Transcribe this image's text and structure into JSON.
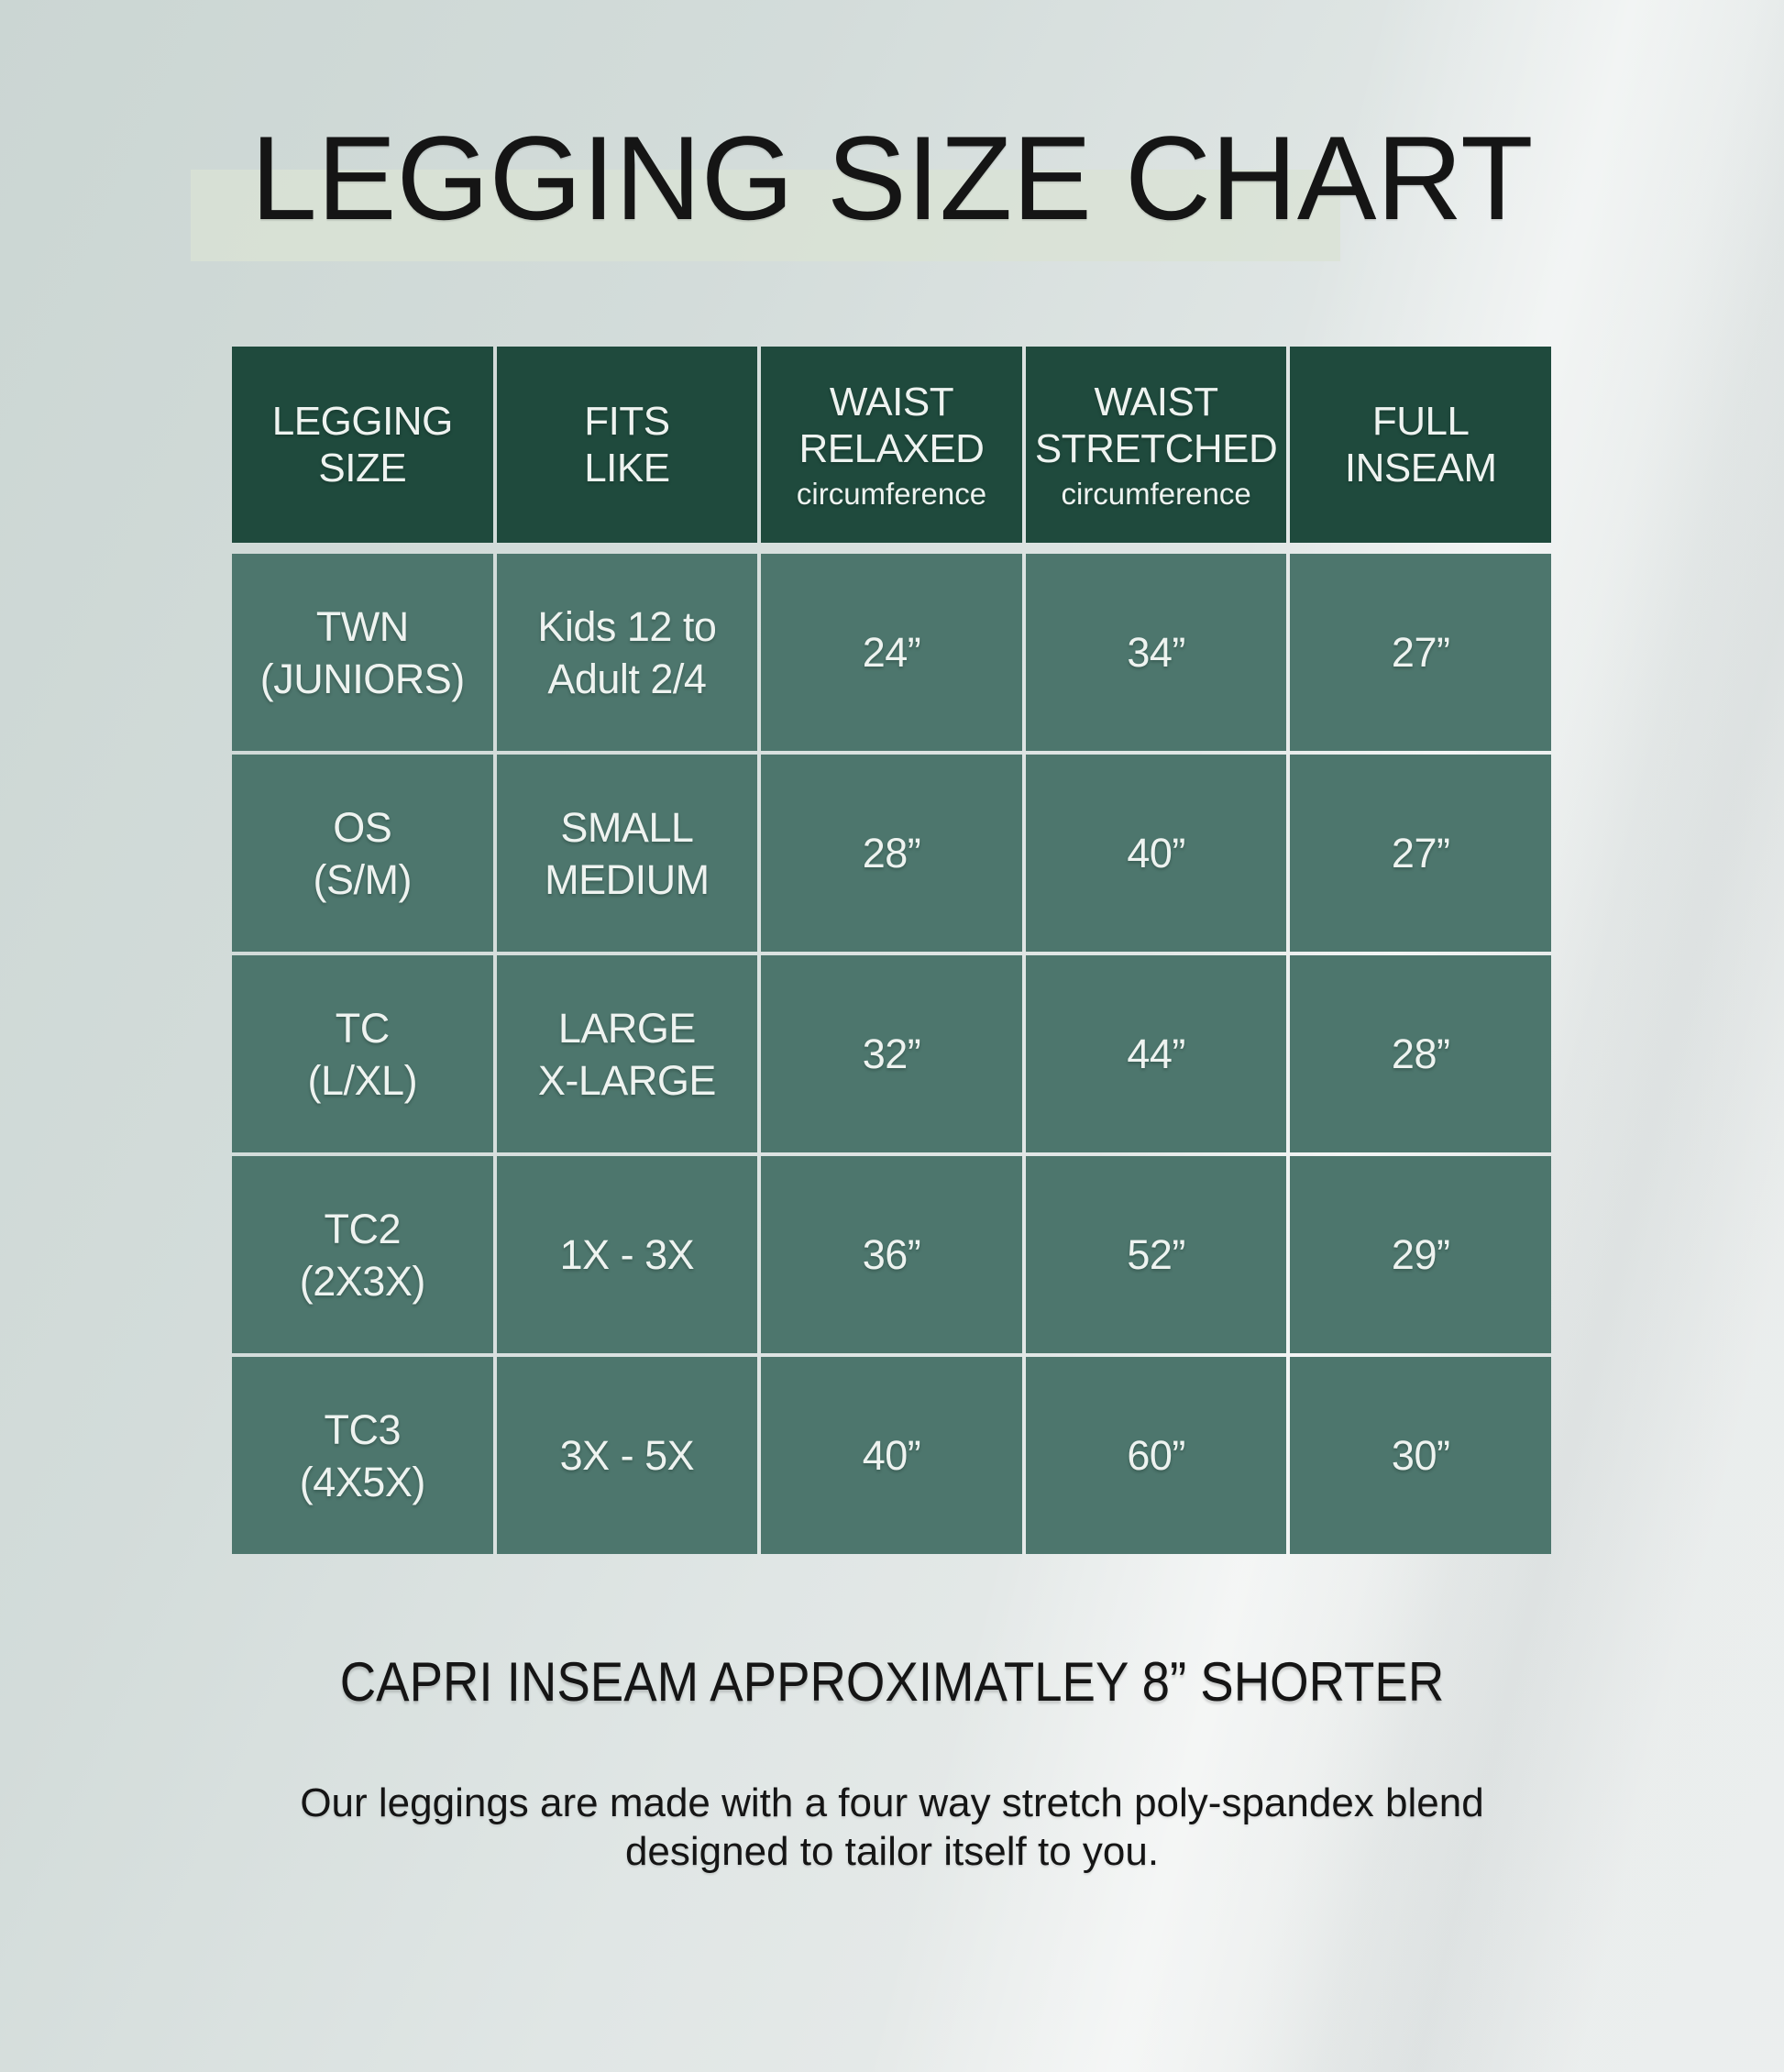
{
  "page": {
    "title": "LEGGING SIZE CHART",
    "capri_note": "CAPRI INSEAM APPROXIMATLEY 8” SHORTER",
    "description_lines": [
      "Our leggings are made with a four way stretch poly-spandex blend",
      "designed to tailor itself to you."
    ]
  },
  "colors": {
    "header_bg": "#1f4a3d",
    "cell_bg": "#4d766d",
    "title_band": "#d9e2d4",
    "page_bg_top": "#cbd6d3",
    "page_bg_bottom": "#ebeeee",
    "text_light": "#eef3f0",
    "text_dark": "#151515"
  },
  "table": {
    "header": [
      {
        "lines": [
          "LEGGING",
          "SIZE"
        ],
        "sub": ""
      },
      {
        "lines": [
          "FITS",
          "LIKE"
        ],
        "sub": ""
      },
      {
        "lines": [
          "WAIST",
          "RELAXED"
        ],
        "sub": "circumference"
      },
      {
        "lines": [
          "WAIST",
          "STRETCHED"
        ],
        "sub": "circumference"
      },
      {
        "lines": [
          "FULL",
          "INSEAM"
        ],
        "sub": ""
      }
    ],
    "rows": [
      {
        "cells": [
          [
            "TWN",
            "(JUNIORS)"
          ],
          [
            "Kids 12 to",
            "Adult 2/4"
          ],
          [
            "24”"
          ],
          [
            "34”"
          ],
          [
            "27”"
          ]
        ]
      },
      {
        "cells": [
          [
            "OS",
            "(S/M)"
          ],
          [
            "SMALL",
            "MEDIUM"
          ],
          [
            "28”"
          ],
          [
            "40”"
          ],
          [
            "27”"
          ]
        ]
      },
      {
        "cells": [
          [
            "TC",
            "(L/XL)"
          ],
          [
            "LARGE",
            "X-LARGE"
          ],
          [
            "32”"
          ],
          [
            "44”"
          ],
          [
            "28”"
          ]
        ]
      },
      {
        "cells": [
          [
            "TC2",
            "(2X3X)"
          ],
          [
            "1X - 3X"
          ],
          [
            "36”"
          ],
          [
            "52”"
          ],
          [
            "29”"
          ]
        ]
      },
      {
        "cells": [
          [
            "TC3",
            "(4X5X)"
          ],
          [
            "3X - 5X"
          ],
          [
            "40”"
          ],
          [
            "60”"
          ],
          [
            "30”"
          ]
        ]
      }
    ]
  },
  "chart_data": {
    "type": "table",
    "title": "LEGGING SIZE CHART",
    "columns": [
      "LEGGING SIZE",
      "FITS LIKE",
      "WAIST RELAXED circumference",
      "WAIST STRETCHED circumference",
      "FULL INSEAM"
    ],
    "rows": [
      [
        "TWN (JUNIORS)",
        "Kids 12 to Adult 2/4",
        "24”",
        "34”",
        "27”"
      ],
      [
        "OS (S/M)",
        "SMALL MEDIUM",
        "28”",
        "40”",
        "27”"
      ],
      [
        "TC (L/XL)",
        "LARGE X-LARGE",
        "32”",
        "44”",
        "28”"
      ],
      [
        "TC2 (2X3X)",
        "1X - 3X",
        "36”",
        "52”",
        "29”"
      ],
      [
        "TC3 (4X5X)",
        "3X - 5X",
        "40”",
        "60”",
        "30”"
      ]
    ],
    "notes": [
      "CAPRI INSEAM APPROXIMATLEY 8” SHORTER",
      "Our leggings are made with a four way stretch poly-spandex blend designed to tailor itself to you."
    ]
  }
}
